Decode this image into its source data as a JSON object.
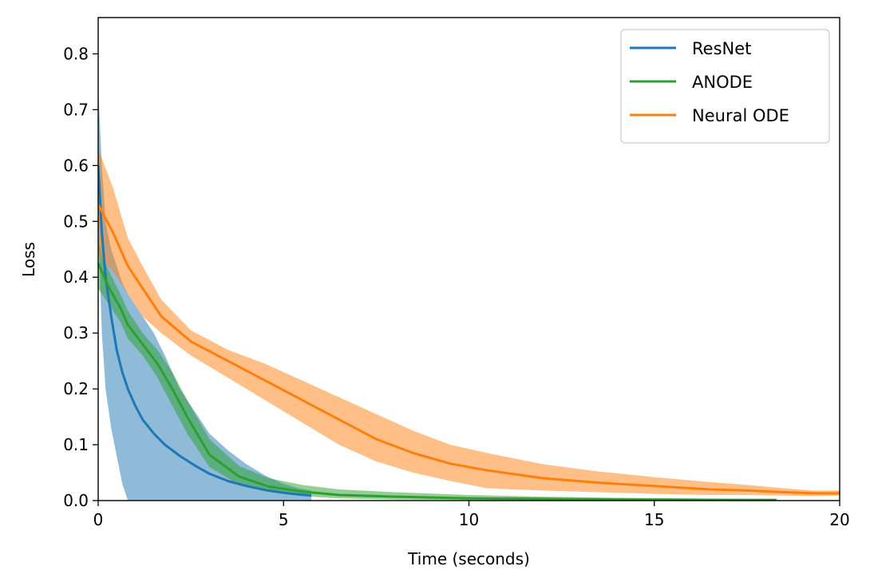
{
  "chart_data": {
    "type": "line",
    "title": "",
    "xlabel": "Time (seconds)",
    "ylabel": "Loss",
    "xlim": [
      0,
      20
    ],
    "ylim": [
      0,
      0.865
    ],
    "xticks": [
      "0",
      "5",
      "10",
      "15",
      "20"
    ],
    "yticks": [
      "0.0",
      "0.1",
      "0.2",
      "0.3",
      "0.4",
      "0.5",
      "0.6",
      "0.7",
      "0.8"
    ],
    "grid": false,
    "legend_position": "top-right",
    "series": [
      {
        "name": "ResNet",
        "color": "#1f77b4",
        "x": [
          0.0,
          0.1,
          0.2,
          0.35,
          0.5,
          0.65,
          0.8,
          1.0,
          1.2,
          1.5,
          1.8,
          2.2,
          2.6,
          3.0,
          3.5,
          4.0,
          4.5,
          5.0,
          5.4,
          5.75
        ],
        "y": [
          0.6,
          0.48,
          0.4,
          0.33,
          0.27,
          0.23,
          0.2,
          0.17,
          0.145,
          0.12,
          0.1,
          0.08,
          0.063,
          0.048,
          0.035,
          0.026,
          0.019,
          0.014,
          0.011,
          0.009
        ],
        "lower": [
          0.5,
          0.3,
          0.2,
          0.13,
          0.08,
          0.03,
          0.0,
          0.0,
          0.0,
          0.0,
          0.0,
          0.0,
          0.0,
          0.0,
          0.0,
          0.0,
          0.0,
          0.0,
          0.0,
          0.0
        ],
        "upper": [
          0.74,
          0.6,
          0.5,
          0.45,
          0.42,
          0.39,
          0.37,
          0.35,
          0.33,
          0.3,
          0.26,
          0.2,
          0.16,
          0.12,
          0.09,
          0.065,
          0.045,
          0.03,
          0.022,
          0.018
        ]
      },
      {
        "name": "ANODE",
        "color": "#2ca02c",
        "x": [
          0.0,
          0.1,
          0.3,
          0.6,
          0.8,
          1.2,
          1.6,
          2.0,
          2.4,
          3.0,
          3.8,
          4.6,
          5.5,
          6.5,
          8.0,
          10.0,
          12.0,
          14.0,
          16.0,
          18.3
        ],
        "y": [
          0.425,
          0.41,
          0.38,
          0.345,
          0.315,
          0.28,
          0.245,
          0.2,
          0.15,
          0.082,
          0.043,
          0.025,
          0.016,
          0.01,
          0.007,
          0.004,
          0.003,
          0.002,
          0.0015,
          0.001
        ],
        "lower": [
          0.38,
          0.37,
          0.35,
          0.32,
          0.29,
          0.26,
          0.22,
          0.17,
          0.12,
          0.06,
          0.028,
          0.015,
          0.008,
          0.004,
          0.002,
          0.001,
          0.0,
          0.0,
          0.0,
          0.0
        ],
        "upper": [
          0.47,
          0.44,
          0.41,
          0.37,
          0.34,
          0.3,
          0.27,
          0.23,
          0.18,
          0.11,
          0.062,
          0.04,
          0.028,
          0.02,
          0.015,
          0.01,
          0.007,
          0.005,
          0.004,
          0.003
        ]
      },
      {
        "name": "Neural ODE",
        "color": "#ff7f0e",
        "x": [
          0.0,
          0.4,
          0.8,
          1.2,
          1.7,
          2.5,
          3.5,
          4.5,
          5.5,
          6.5,
          7.5,
          8.5,
          9.5,
          10.5,
          12.0,
          13.5,
          15.0,
          16.5,
          17.5,
          18.5,
          19.3,
          20.0
        ],
        "y": [
          0.53,
          0.48,
          0.42,
          0.38,
          0.33,
          0.285,
          0.25,
          0.215,
          0.18,
          0.145,
          0.11,
          0.085,
          0.066,
          0.054,
          0.04,
          0.032,
          0.026,
          0.02,
          0.018,
          0.015,
          0.013,
          0.013
        ],
        "lower": [
          0.44,
          0.41,
          0.37,
          0.33,
          0.3,
          0.26,
          0.22,
          0.18,
          0.14,
          0.1,
          0.07,
          0.05,
          0.035,
          0.022,
          0.018,
          0.015,
          0.012,
          0.01,
          0.01,
          0.009,
          0.008,
          0.009
        ],
        "upper": [
          0.63,
          0.56,
          0.47,
          0.42,
          0.36,
          0.305,
          0.27,
          0.245,
          0.215,
          0.185,
          0.155,
          0.125,
          0.1,
          0.085,
          0.065,
          0.052,
          0.042,
          0.033,
          0.028,
          0.022,
          0.018,
          0.018
        ]
      }
    ]
  }
}
